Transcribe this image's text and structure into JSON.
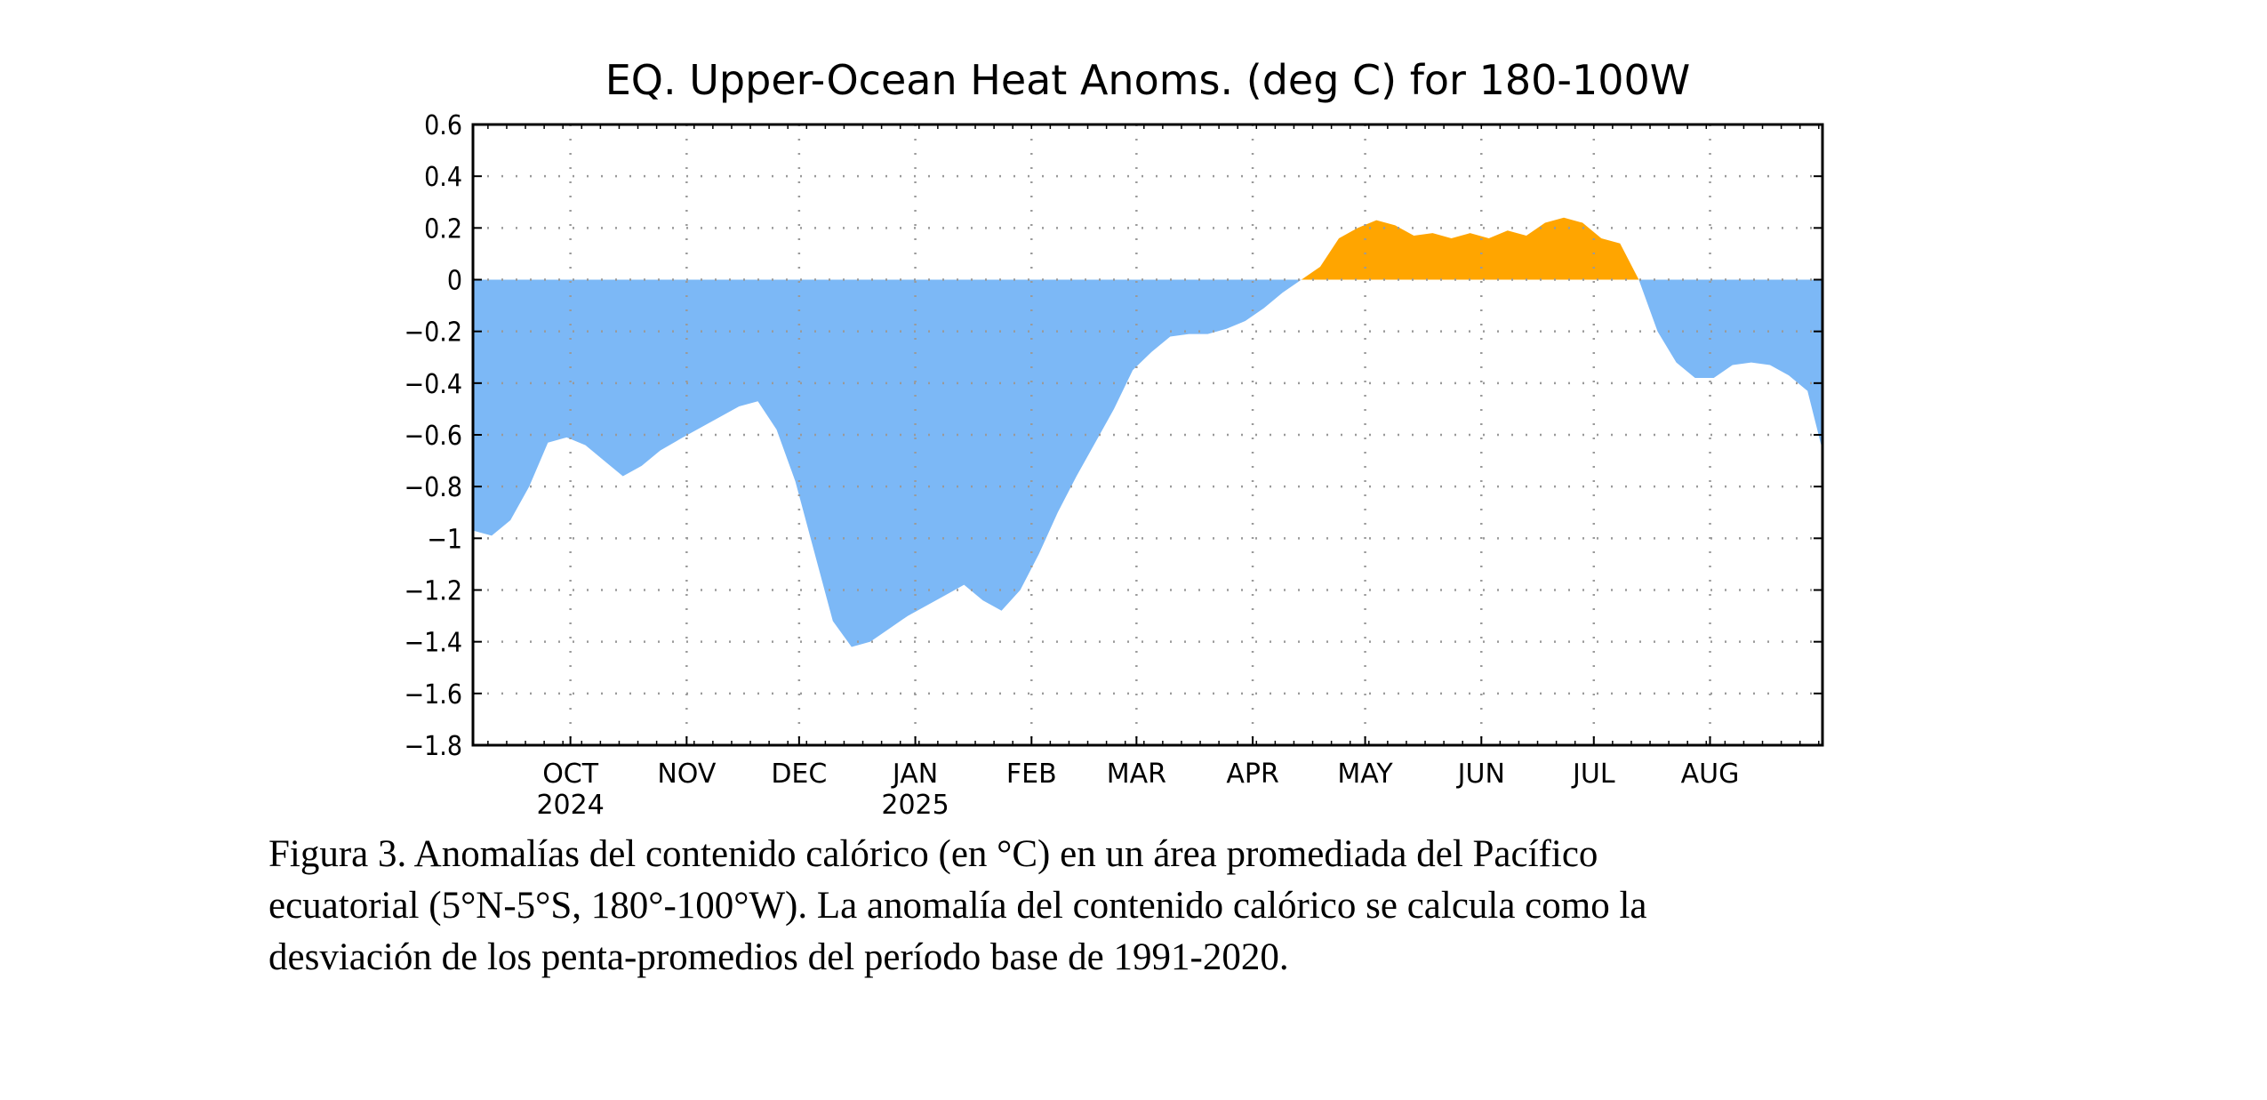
{
  "chart_data": {
    "type": "area",
    "title": "EQ. Upper-Ocean Heat Anoms. (deg C) for 180-100W",
    "xlabel": "",
    "ylabel": "",
    "ylim": [
      -1.8,
      0.6
    ],
    "yticks": [
      0.6,
      0.4,
      0.2,
      0,
      -0.2,
      -0.4,
      -0.6,
      -0.8,
      -1,
      -1.2,
      -1.4,
      -1.6,
      -1.8
    ],
    "ytick_labels": [
      "0.6",
      "0.4",
      "0.2",
      "0",
      "−0.2",
      "−0.4",
      "−0.6",
      "−0.8",
      "−1",
      "−1.2",
      "−1.4",
      "−1.6",
      "−1.8"
    ],
    "xlim": [
      "2024-09-05",
      "2025-08-31"
    ],
    "xticks": [
      {
        "date": "2024-10-01",
        "label": "OCT",
        "year": "2024"
      },
      {
        "date": "2024-11-01",
        "label": "NOV",
        "year": ""
      },
      {
        "date": "2024-12-01",
        "label": "DEC",
        "year": ""
      },
      {
        "date": "2025-01-01",
        "label": "JAN",
        "year": "2025"
      },
      {
        "date": "2025-02-01",
        "label": "FEB",
        "year": ""
      },
      {
        "date": "2025-03-01",
        "label": "MAR",
        "year": ""
      },
      {
        "date": "2025-04-01",
        "label": "APR",
        "year": ""
      },
      {
        "date": "2025-05-01",
        "label": "MAY",
        "year": ""
      },
      {
        "date": "2025-06-01",
        "label": "JUN",
        "year": ""
      },
      {
        "date": "2025-07-01",
        "label": "JUL",
        "year": ""
      },
      {
        "date": "2025-08-01",
        "label": "AUG",
        "year": ""
      }
    ],
    "grid": true,
    "colors": {
      "positive": "#FFA500",
      "negative": "#7CB8F6"
    },
    "series": [
      {
        "x": [
          "2024-09-05",
          "2024-09-10",
          "2024-09-15",
          "2024-09-20",
          "2024-09-25",
          "2024-09-30",
          "2024-10-05",
          "2024-10-10",
          "2024-10-15",
          "2024-10-20",
          "2024-10-25",
          "2024-10-31",
          "2024-11-05",
          "2024-11-10",
          "2024-11-15",
          "2024-11-20",
          "2024-11-25",
          "2024-11-30",
          "2024-12-05",
          "2024-12-10",
          "2024-12-15",
          "2024-12-20",
          "2024-12-25",
          "2024-12-30",
          "2025-01-04",
          "2025-01-09",
          "2025-01-14",
          "2025-01-19",
          "2025-01-24",
          "2025-01-29",
          "2025-02-03",
          "2025-02-08",
          "2025-02-13",
          "2025-02-18",
          "2025-02-23",
          "2025-02-28",
          "2025-03-05",
          "2025-03-10",
          "2025-03-15",
          "2025-03-20",
          "2025-03-25",
          "2025-03-30",
          "2025-04-04",
          "2025-04-09",
          "2025-04-14",
          "2025-04-19",
          "2025-04-24",
          "2025-04-29",
          "2025-05-04",
          "2025-05-09",
          "2025-05-14",
          "2025-05-19",
          "2025-05-24",
          "2025-05-29",
          "2025-06-03",
          "2025-06-08",
          "2025-06-13",
          "2025-06-18",
          "2025-06-23",
          "2025-06-28",
          "2025-07-03",
          "2025-07-08",
          "2025-07-13",
          "2025-07-18",
          "2025-07-23",
          "2025-07-28",
          "2025-08-02",
          "2025-08-07",
          "2025-08-12",
          "2025-08-17",
          "2025-08-22",
          "2025-08-27",
          "2025-08-31"
        ],
        "values": [
          -0.97,
          -0.99,
          -0.93,
          -0.8,
          -0.63,
          -0.61,
          -0.64,
          -0.7,
          -0.76,
          -0.72,
          -0.66,
          -0.61,
          -0.57,
          -0.53,
          -0.49,
          -0.47,
          -0.58,
          -0.78,
          -1.05,
          -1.32,
          -1.42,
          -1.4,
          -1.35,
          -1.3,
          -1.26,
          -1.22,
          -1.18,
          -1.24,
          -1.28,
          -1.2,
          -1.06,
          -0.9,
          -0.76,
          -0.63,
          -0.5,
          -0.35,
          -0.28,
          -0.22,
          -0.21,
          -0.21,
          -0.19,
          -0.16,
          -0.11,
          -0.05,
          0.0,
          0.05,
          0.16,
          0.2,
          0.23,
          0.21,
          0.17,
          0.18,
          0.16,
          0.18,
          0.16,
          0.19,
          0.17,
          0.22,
          0.24,
          0.22,
          0.16,
          0.14,
          0.0,
          -0.2,
          -0.32,
          -0.38,
          -0.38,
          -0.33,
          -0.32,
          -0.33,
          -0.37,
          -0.43,
          -0.66
        ]
      }
    ]
  },
  "caption": {
    "line1": "Figura 3. Anomalías del contenido calórico (en °C) en un área promediada del Pacífico",
    "line2": "ecuatorial (5°N-5°S, 180°-100°W). La anomalía del contenido calórico se calcula como la",
    "line3": "desviación de los penta-promedios del período base de 1991-2020."
  }
}
